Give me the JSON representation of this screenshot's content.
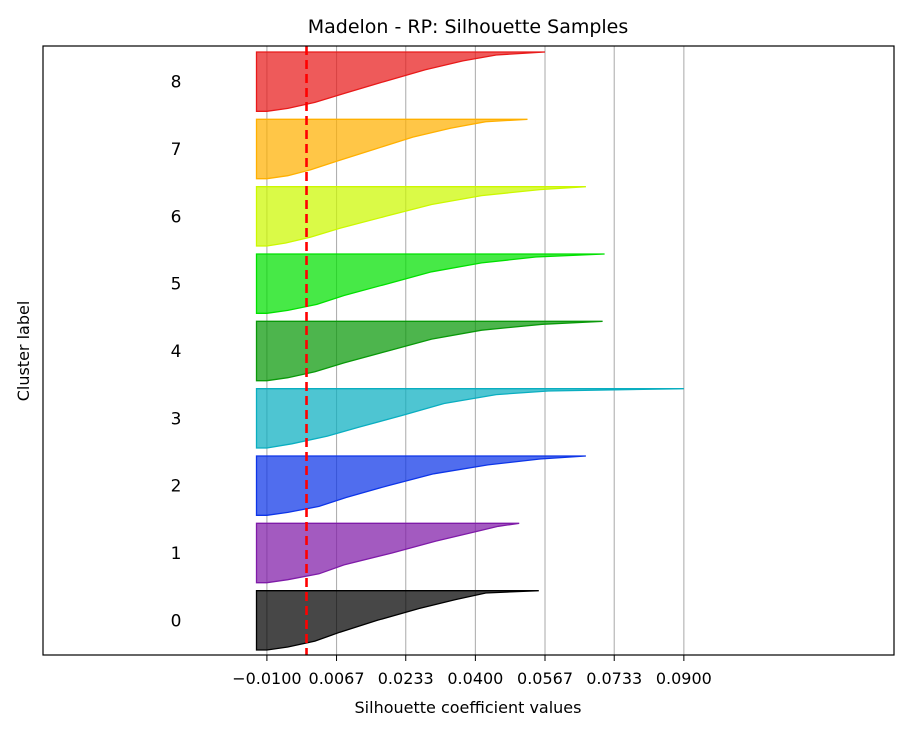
{
  "chart_data": {
    "type": "area",
    "title": "Madelon - RP: Silhouette Samples",
    "xlabel": "Silhouette coefficient values",
    "ylabel": "Cluster label",
    "xticks": [
      "−0.0100",
      "0.0067",
      "0.0233",
      "0.0400",
      "0.0567",
      "0.0733",
      "0.0900"
    ],
    "xtick_values": [
      -0.01,
      0.0067,
      0.0233,
      0.04,
      0.0567,
      0.0733,
      0.09
    ],
    "xlim": [
      -0.0637,
      0.1404
    ],
    "grid": "vertical",
    "average_silhouette": -0.0005,
    "average_line_color": "#ff0000",
    "clusters": [
      {
        "label": "0",
        "color": "#000000",
        "profile": [
          [
            0.0,
            0.0552
          ],
          [
            0.04,
            0.0425
          ],
          [
            0.15,
            0.0352
          ],
          [
            0.3,
            0.0265
          ],
          [
            0.5,
            0.0165
          ],
          [
            0.7,
            0.0075
          ],
          [
            0.85,
            0.0015
          ],
          [
            0.95,
            -0.005
          ],
          [
            1.0,
            -0.01
          ]
        ]
      },
      {
        "label": "1",
        "color": "#7f1ba8",
        "profile": [
          [
            0.0,
            0.0505
          ],
          [
            0.05,
            0.0455
          ],
          [
            0.15,
            0.0395
          ],
          [
            0.3,
            0.0305
          ],
          [
            0.5,
            0.02
          ],
          [
            0.7,
            0.0085
          ],
          [
            0.85,
            0.0025
          ],
          [
            0.95,
            -0.005
          ],
          [
            1.0,
            -0.01
          ]
        ]
      },
      {
        "label": "2",
        "color": "#0d35e8",
        "profile": [
          [
            0.0,
            0.0665
          ],
          [
            0.05,
            0.0555
          ],
          [
            0.15,
            0.043
          ],
          [
            0.3,
            0.03
          ],
          [
            0.5,
            0.019
          ],
          [
            0.7,
            0.009
          ],
          [
            0.85,
            0.0025
          ],
          [
            0.95,
            -0.005
          ],
          [
            1.0,
            -0.01
          ]
        ]
      },
      {
        "label": "3",
        "color": "#0aaec0",
        "profile": [
          [
            0.0,
            0.09
          ],
          [
            0.04,
            0.0575
          ],
          [
            0.1,
            0.045
          ],
          [
            0.25,
            0.0325
          ],
          [
            0.45,
            0.0225
          ],
          [
            0.65,
            0.012
          ],
          [
            0.8,
            0.0045
          ],
          [
            0.93,
            -0.004
          ],
          [
            1.0,
            -0.01
          ]
        ]
      },
      {
        "label": "4",
        "color": "#099909",
        "profile": [
          [
            0.0,
            0.0705
          ],
          [
            0.05,
            0.056
          ],
          [
            0.15,
            0.0415
          ],
          [
            0.3,
            0.0295
          ],
          [
            0.5,
            0.019
          ],
          [
            0.7,
            0.0085
          ],
          [
            0.85,
            0.0015
          ],
          [
            0.95,
            -0.005
          ],
          [
            1.0,
            -0.01
          ]
        ]
      },
      {
        "label": "5",
        "color": "#00e000",
        "profile": [
          [
            0.0,
            0.071
          ],
          [
            0.05,
            0.0545
          ],
          [
            0.15,
            0.0415
          ],
          [
            0.3,
            0.0295
          ],
          [
            0.5,
            0.019
          ],
          [
            0.7,
            0.0085
          ],
          [
            0.85,
            0.002
          ],
          [
            0.95,
            -0.005
          ],
          [
            1.0,
            -0.01
          ]
        ]
      },
      {
        "label": "6",
        "color": "#ccf800",
        "profile": [
          [
            0.0,
            0.0665
          ],
          [
            0.05,
            0.0555
          ],
          [
            0.15,
            0.0415
          ],
          [
            0.3,
            0.0295
          ],
          [
            0.5,
            0.0185
          ],
          [
            0.7,
            0.0075
          ],
          [
            0.85,
            0.0005
          ],
          [
            0.95,
            -0.0055
          ],
          [
            1.0,
            -0.01
          ]
        ]
      },
      {
        "label": "7",
        "color": "#ffb000",
        "profile": [
          [
            0.0,
            0.0525
          ],
          [
            0.04,
            0.0425
          ],
          [
            0.15,
            0.034
          ],
          [
            0.3,
            0.025
          ],
          [
            0.5,
            0.016
          ],
          [
            0.7,
            0.007
          ],
          [
            0.85,
            0.0005
          ],
          [
            0.95,
            -0.005
          ],
          [
            1.0,
            -0.01
          ]
        ]
      },
      {
        "label": "8",
        "color": "#e81a1a",
        "profile": [
          [
            0.0,
            0.0567
          ],
          [
            0.05,
            0.045
          ],
          [
            0.15,
            0.037
          ],
          [
            0.3,
            0.028
          ],
          [
            0.5,
            0.018
          ],
          [
            0.7,
            0.0085
          ],
          [
            0.85,
            0.0015
          ],
          [
            0.95,
            -0.005
          ],
          [
            1.0,
            -0.01
          ]
        ]
      }
    ]
  }
}
